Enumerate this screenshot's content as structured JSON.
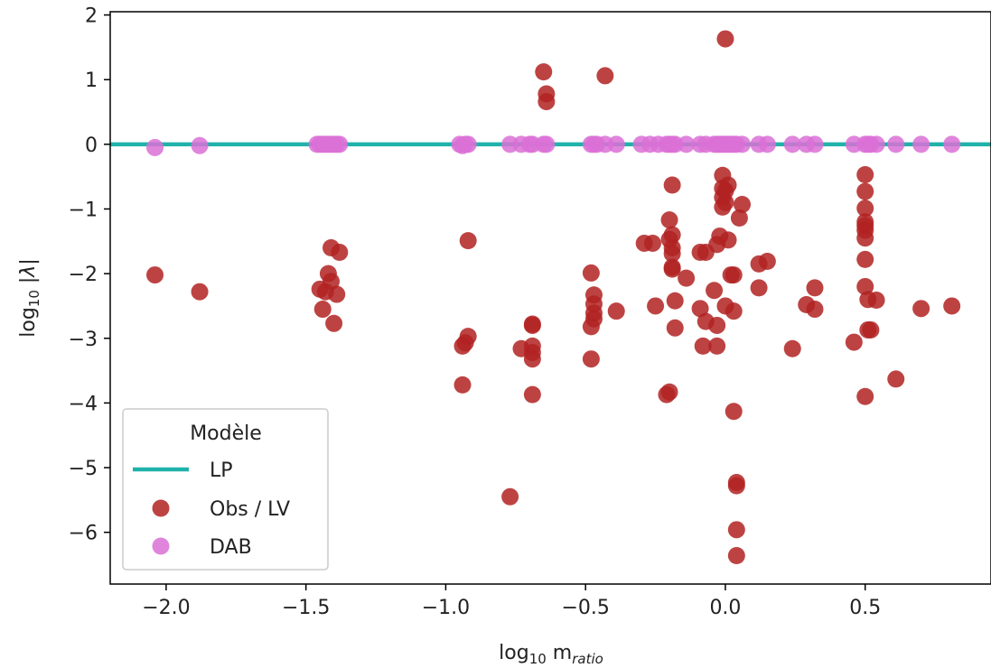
{
  "chart_data": {
    "type": "scatter",
    "xlabel": "log10 m_ratio",
    "ylabel": "log10 |λ|",
    "xlim": [
      -2.2,
      0.95
    ],
    "ylim": [
      -6.8,
      2.05
    ],
    "x_ticks": [
      -2.0,
      -1.5,
      -1.0,
      -0.5,
      0.0,
      0.5
    ],
    "x_tick_labels": [
      "−2.0",
      "−1.5",
      "−1.0",
      "−0.5",
      "0.0",
      "0.5"
    ],
    "y_ticks": [
      2,
      1,
      0,
      -1,
      -2,
      -3,
      -4,
      -5,
      -6
    ],
    "y_tick_labels": [
      "2",
      "1",
      "0",
      "−1",
      "−2",
      "−3",
      "−4",
      "−5",
      "−6"
    ],
    "grid": false,
    "legend": {
      "title": "Modèle",
      "position": "lower-left",
      "entries": [
        "LP",
        "Obs / LV",
        "DAB"
      ]
    },
    "series": [
      {
        "name": "LP",
        "kind": "line",
        "color": "#20b2aa",
        "y": 0
      },
      {
        "name": "Obs / LV",
        "kind": "scatter",
        "color": "#b22222",
        "points": [
          [
            -2.04,
            -2.02
          ],
          [
            -1.88,
            -2.28
          ],
          [
            -1.45,
            -2.24
          ],
          [
            -1.44,
            -2.55
          ],
          [
            -1.43,
            -2.28
          ],
          [
            -1.42,
            -2.0
          ],
          [
            -1.41,
            -2.12
          ],
          [
            -1.41,
            -1.6
          ],
          [
            -1.4,
            -2.77
          ],
          [
            -1.39,
            -2.32
          ],
          [
            -1.38,
            -1.67
          ],
          [
            -0.94,
            -3.12
          ],
          [
            -0.94,
            -3.72
          ],
          [
            -0.93,
            -3.07
          ],
          [
            -0.92,
            -2.97
          ],
          [
            -0.92,
            -1.49
          ],
          [
            -0.77,
            -5.45
          ],
          [
            -0.73,
            -3.16
          ],
          [
            -0.69,
            -2.8
          ],
          [
            -0.69,
            -3.22
          ],
          [
            -0.69,
            -3.32
          ],
          [
            -0.69,
            -3.87
          ],
          [
            -0.69,
            -2.78
          ],
          [
            -0.69,
            -3.12
          ],
          [
            -0.65,
            1.12
          ],
          [
            -0.64,
            0.78
          ],
          [
            -0.64,
            0.66
          ],
          [
            -0.43,
            1.06
          ],
          [
            -0.48,
            -1.99
          ],
          [
            -0.48,
            -2.82
          ],
          [
            -0.48,
            -3.32
          ],
          [
            -0.47,
            -2.33
          ],
          [
            -0.47,
            -2.47
          ],
          [
            -0.47,
            -2.61
          ],
          [
            -0.47,
            -2.7
          ],
          [
            -0.39,
            -2.58
          ],
          [
            -0.29,
            -1.53
          ],
          [
            -0.26,
            -1.53
          ],
          [
            -0.25,
            -2.5
          ],
          [
            -0.21,
            -3.87
          ],
          [
            -0.2,
            -3.83
          ],
          [
            -0.2,
            -1.17
          ],
          [
            -0.2,
            -1.47
          ],
          [
            -0.19,
            -1.6
          ],
          [
            -0.19,
            -1.4
          ],
          [
            -0.19,
            -1.69
          ],
          [
            -0.19,
            -1.9
          ],
          [
            -0.19,
            -1.93
          ],
          [
            -0.19,
            -0.63
          ],
          [
            -0.18,
            -2.42
          ],
          [
            -0.18,
            -2.84
          ],
          [
            -0.14,
            -2.07
          ],
          [
            -0.09,
            -1.67
          ],
          [
            -0.09,
            -2.54
          ],
          [
            -0.08,
            -3.12
          ],
          [
            -0.07,
            -1.67
          ],
          [
            -0.07,
            -2.74
          ],
          [
            -0.04,
            -2.26
          ],
          [
            -0.03,
            -2.8
          ],
          [
            -0.03,
            -3.12
          ],
          [
            -0.03,
            -1.55
          ],
          [
            -0.02,
            -1.42
          ],
          [
            0.0,
            1.63
          ],
          [
            -0.01,
            -0.48
          ],
          [
            -0.01,
            -0.68
          ],
          [
            -0.01,
            -0.82
          ],
          [
            -0.01,
            -0.97
          ],
          [
            0.0,
            -0.72
          ],
          [
            0.0,
            -0.9
          ],
          [
            0.0,
            -2.5
          ],
          [
            0.01,
            -0.63
          ],
          [
            0.01,
            -1.48
          ],
          [
            0.02,
            -2.02
          ],
          [
            0.03,
            -2.02
          ],
          [
            0.03,
            -2.58
          ],
          [
            0.03,
            -4.13
          ],
          [
            0.04,
            -5.23
          ],
          [
            0.04,
            -5.28
          ],
          [
            0.04,
            -5.96
          ],
          [
            0.04,
            -6.36
          ],
          [
            0.05,
            -1.14
          ],
          [
            0.06,
            -0.93
          ],
          [
            0.12,
            -1.85
          ],
          [
            0.12,
            -2.22
          ],
          [
            0.15,
            -1.81
          ],
          [
            0.24,
            -3.16
          ],
          [
            0.29,
            -2.48
          ],
          [
            0.32,
            -2.22
          ],
          [
            0.32,
            -2.55
          ],
          [
            0.46,
            -3.06
          ],
          [
            0.5,
            -0.47
          ],
          [
            0.5,
            -0.73
          ],
          [
            0.5,
            -0.99
          ],
          [
            0.5,
            -1.2
          ],
          [
            0.5,
            -1.26
          ],
          [
            0.5,
            -1.33
          ],
          [
            0.5,
            -1.45
          ],
          [
            0.5,
            -1.78
          ],
          [
            0.5,
            -2.2
          ],
          [
            0.5,
            -3.9
          ],
          [
            0.51,
            -2.4
          ],
          [
            0.51,
            -2.87
          ],
          [
            0.52,
            -2.87
          ],
          [
            0.54,
            -2.41
          ],
          [
            0.61,
            -3.63
          ],
          [
            0.7,
            -2.54
          ],
          [
            0.81,
            -2.5
          ]
        ]
      },
      {
        "name": "DAB",
        "kind": "scatter",
        "color": "#da70d6",
        "points": [
          [
            -2.04,
            -0.05
          ],
          [
            -1.88,
            -0.02
          ],
          [
            -1.46,
            0.0
          ],
          [
            -1.45,
            0.0
          ],
          [
            -1.44,
            0.0
          ],
          [
            -1.43,
            0.0
          ],
          [
            -1.42,
            0.0
          ],
          [
            -1.41,
            0.0
          ],
          [
            -1.4,
            0.0
          ],
          [
            -1.39,
            0.0
          ],
          [
            -1.38,
            0.0
          ],
          [
            -0.95,
            0.0
          ],
          [
            -0.94,
            -0.02
          ],
          [
            -0.93,
            0.0
          ],
          [
            -0.92,
            0.0
          ],
          [
            -0.77,
            0.0
          ],
          [
            -0.73,
            0.0
          ],
          [
            -0.7,
            0.0
          ],
          [
            -0.69,
            0.0
          ],
          [
            -0.65,
            0.0
          ],
          [
            -0.64,
            0.0
          ],
          [
            -0.48,
            0.0
          ],
          [
            -0.47,
            0.0
          ],
          [
            -0.46,
            0.0
          ],
          [
            -0.43,
            0.0
          ],
          [
            -0.39,
            0.0
          ],
          [
            -0.3,
            0.0
          ],
          [
            -0.27,
            0.0
          ],
          [
            -0.24,
            0.0
          ],
          [
            -0.21,
            0.0
          ],
          [
            -0.2,
            0.0
          ],
          [
            -0.19,
            0.0
          ],
          [
            -0.18,
            0.0
          ],
          [
            -0.14,
            0.0
          ],
          [
            -0.09,
            0.0
          ],
          [
            -0.07,
            0.0
          ],
          [
            -0.04,
            0.0
          ],
          [
            -0.03,
            0.0
          ],
          [
            -0.02,
            0.0
          ],
          [
            -0.01,
            0.0
          ],
          [
            0.0,
            0.0
          ],
          [
            0.01,
            0.0
          ],
          [
            0.02,
            0.0
          ],
          [
            0.03,
            0.0
          ],
          [
            0.04,
            0.0
          ],
          [
            0.06,
            0.0
          ],
          [
            0.12,
            0.0
          ],
          [
            0.15,
            0.0
          ],
          [
            0.24,
            0.0
          ],
          [
            0.29,
            0.0
          ],
          [
            0.32,
            0.0
          ],
          [
            0.46,
            0.0
          ],
          [
            0.5,
            0.0
          ],
          [
            0.51,
            0.0
          ],
          [
            0.52,
            0.0
          ],
          [
            0.54,
            0.0
          ],
          [
            0.61,
            0.0
          ],
          [
            0.7,
            0.0
          ],
          [
            0.81,
            0.0
          ]
        ]
      }
    ]
  }
}
